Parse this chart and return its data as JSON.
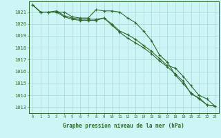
{
  "x": [
    0,
    1,
    2,
    3,
    4,
    5,
    6,
    7,
    8,
    9,
    10,
    11,
    12,
    13,
    14,
    15,
    16,
    17,
    18,
    19,
    20,
    21,
    22,
    23
  ],
  "line1": [
    1021.6,
    1021.0,
    1021.0,
    1021.0,
    1021.0,
    1020.6,
    1020.5,
    1020.5,
    1021.2,
    1021.1,
    1021.1,
    1021.0,
    1020.5,
    1020.1,
    1019.4,
    1018.6,
    1017.4,
    1016.8,
    1015.7,
    1015.0,
    1014.2,
    1013.7,
    1013.2,
    1013.1
  ],
  "line2": [
    1021.6,
    1021.0,
    1021.0,
    1021.0,
    1020.6,
    1020.4,
    1020.3,
    1020.3,
    1020.3,
    1020.5,
    1019.9,
    1019.3,
    1018.8,
    1018.4,
    1018.0,
    1017.5,
    1016.9,
    1016.4,
    1015.8,
    1015.2,
    1014.1,
    1013.8,
    1013.2,
    1013.1
  ],
  "line3": [
    1021.6,
    1021.0,
    1021.0,
    1021.1,
    1020.7,
    1020.5,
    1020.4,
    1020.4,
    1020.4,
    1020.5,
    1020.0,
    1019.4,
    1019.1,
    1018.7,
    1018.2,
    1017.7,
    1017.1,
    1016.5,
    1016.3,
    1015.6,
    1014.8,
    1014.0,
    1013.7,
    1013.1
  ],
  "bg_color": "#cef5f5",
  "grid_color": "#a8d8d8",
  "line_color": "#2d6a2d",
  "ylabel_values": [
    1013,
    1014,
    1015,
    1016,
    1017,
    1018,
    1019,
    1020,
    1021
  ],
  "xlabel": "Graphe pression niveau de la mer (hPa)",
  "ylim": [
    1012.5,
    1021.9
  ],
  "xlim": [
    -0.5,
    23.5
  ]
}
